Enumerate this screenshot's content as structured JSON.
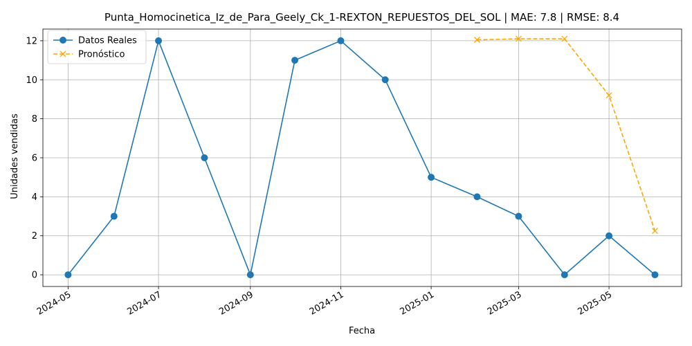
{
  "chart_data": {
    "type": "line",
    "title": "Punta_Homocinetica_Iz_de_Para_Geely_Ck_1-REXTON_REPUESTOS_DEL_SOL | MAE: 7.8 | RMSE: 8.4",
    "xlabel": "Fecha",
    "ylabel": "Unidades vendidas",
    "x_tick_labels": [
      "2024-05",
      "2024-07",
      "2024-09",
      "2024-11",
      "2025-01",
      "2025-03",
      "2025-05"
    ],
    "x_tick_dates": [
      "2024-05-01",
      "2024-07-01",
      "2024-09-01",
      "2024-11-01",
      "2025-01-01",
      "2025-03-01",
      "2025-05-01"
    ],
    "y_ticks": [
      0,
      2,
      4,
      6,
      8,
      10,
      12
    ],
    "xlim": [
      "2024-04-14",
      "2025-06-19"
    ],
    "ylim": [
      -0.6,
      12.6
    ],
    "grid": true,
    "legend_position": "upper-left",
    "series": [
      {
        "name": "Datos Reales",
        "color": "#1f77b4",
        "style": "solid",
        "marker": "circle",
        "x": [
          "2024-05-01",
          "2024-06-01",
          "2024-07-01",
          "2024-08-01",
          "2024-09-01",
          "2024-10-01",
          "2024-11-01",
          "2024-12-01",
          "2025-01-01",
          "2025-02-01",
          "2025-03-01",
          "2025-04-01",
          "2025-05-01",
          "2025-06-01"
        ],
        "values": [
          0,
          3,
          12,
          6,
          0,
          11,
          12,
          10,
          5,
          4,
          3,
          0,
          2,
          0
        ]
      },
      {
        "name": "Pronóstico",
        "color": "#ffa500",
        "style": "dashed",
        "marker": "x",
        "x": [
          "2025-02-01",
          "2025-03-01",
          "2025-04-01",
          "2025-05-01",
          "2025-06-01"
        ],
        "values": [
          12.05,
          12.1,
          12.1,
          9.2,
          2.25
        ]
      }
    ]
  }
}
